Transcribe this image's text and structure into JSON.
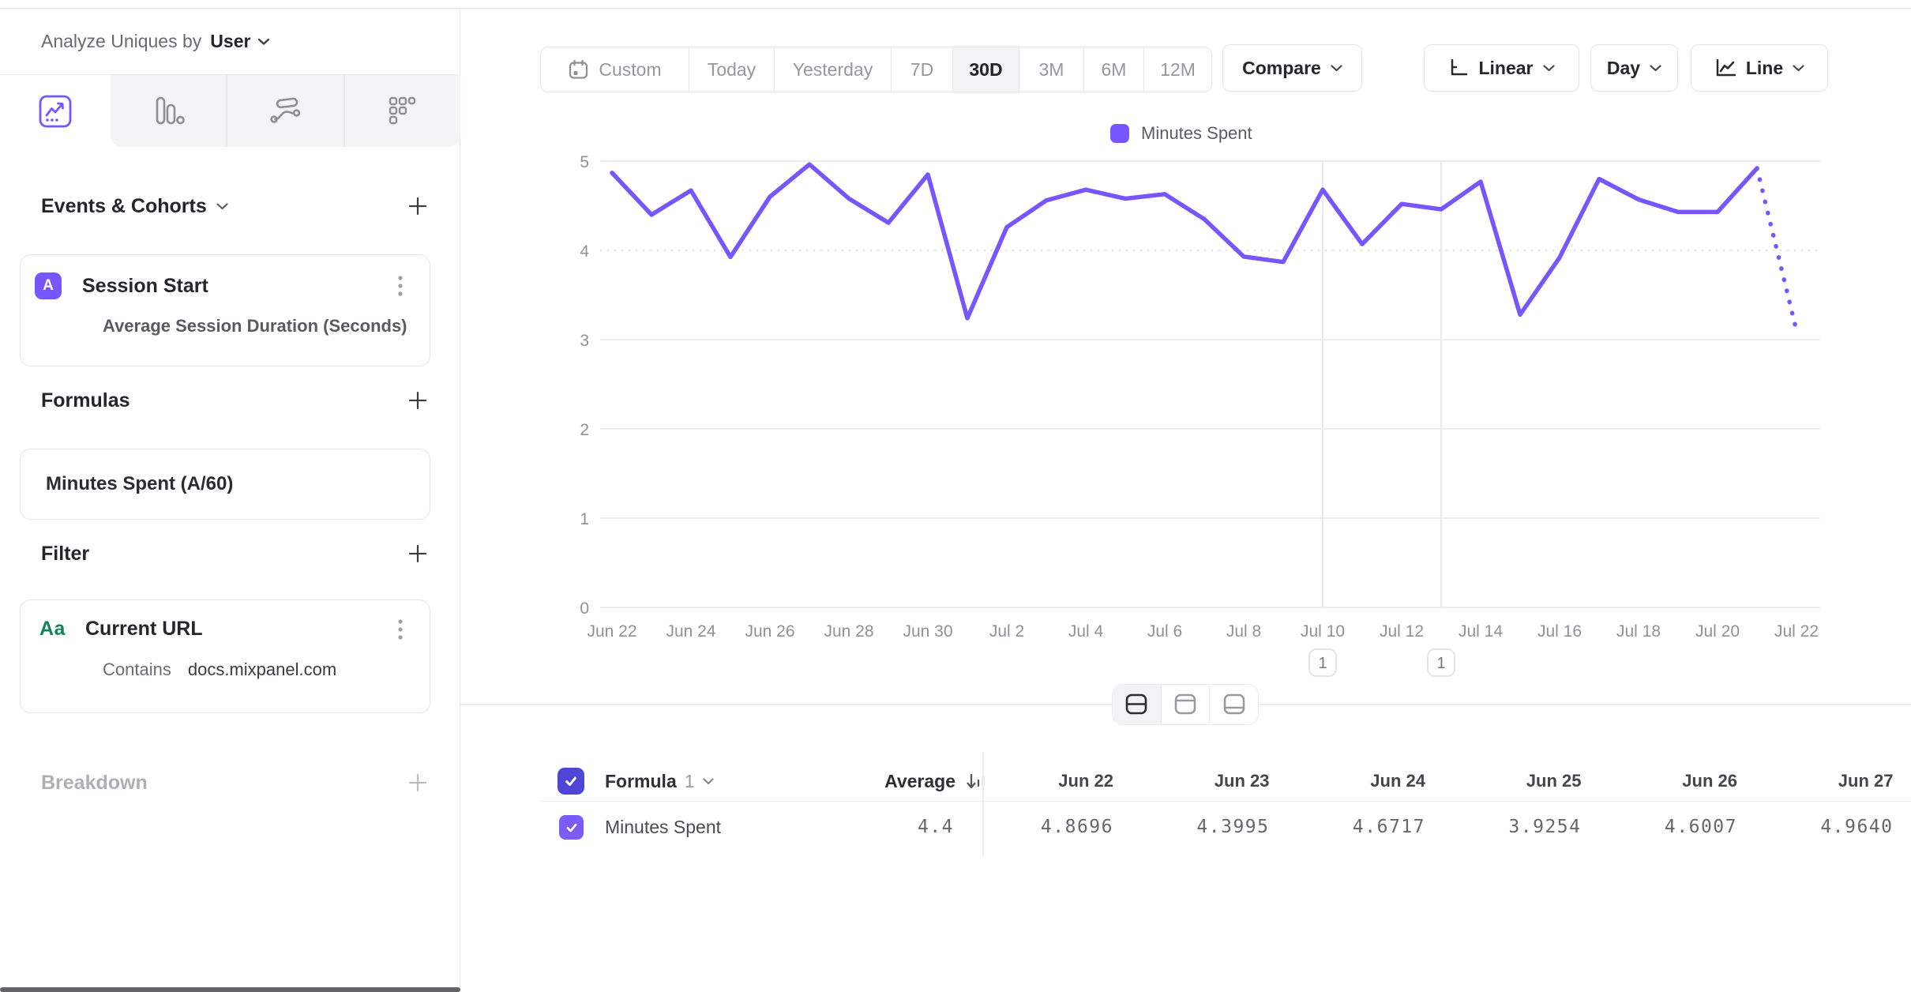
{
  "colors": {
    "accent": "#7856ff",
    "header_checkbox": "#4f46d6",
    "row_checkbox": "#7b5cf6",
    "string_prop_green": "#12845c"
  },
  "sidebar": {
    "analyze_label": "Analyze Uniques by",
    "analyze_value": "User",
    "events_title": "Events & Cohorts",
    "event_card": {
      "badge": "A",
      "title": "Session Start",
      "subtitle": "Average Session Duration (Seconds)"
    },
    "formulas_title": "Formulas",
    "formula_card": {
      "title": "Minutes Spent (A/60)"
    },
    "filter_title": "Filter",
    "filter_card": {
      "icon_label": "Aa",
      "title": "Current URL",
      "operator": "Contains",
      "value": "docs.mixpanel.com"
    },
    "breakdown_title": "Breakdown"
  },
  "toolbar": {
    "date_ranges": [
      "Custom",
      "Today",
      "Yesterday",
      "7D",
      "30D",
      "3M",
      "6M",
      "12M"
    ],
    "active_range": "30D",
    "compare_label": "Compare",
    "scale_label": "Linear",
    "interval_label": "Day",
    "chart_type_label": "Line"
  },
  "chart_data": {
    "type": "line",
    "legend": [
      "Minutes Spent"
    ],
    "legend_position": "top-center",
    "grid": true,
    "ylim": [
      0,
      5
    ],
    "yticks": [
      0,
      1,
      2,
      3,
      4,
      5
    ],
    "x_tick_step": 2,
    "x": [
      "Jun 22",
      "Jun 23",
      "Jun 24",
      "Jun 25",
      "Jun 26",
      "Jun 27",
      "Jun 28",
      "Jun 29",
      "Jun 30",
      "Jul 1",
      "Jul 2",
      "Jul 3",
      "Jul 4",
      "Jul 5",
      "Jul 6",
      "Jul 7",
      "Jul 8",
      "Jul 9",
      "Jul 10",
      "Jul 11",
      "Jul 12",
      "Jul 13",
      "Jul 14",
      "Jul 15",
      "Jul 16",
      "Jul 17",
      "Jul 18",
      "Jul 19",
      "Jul 20",
      "Jul 21",
      "Jul 22"
    ],
    "series": [
      {
        "name": "Minutes Spent",
        "color": "#7856ff",
        "values": [
          4.8696,
          4.3995,
          4.6717,
          3.9254,
          4.6007,
          4.964,
          4.58,
          4.31,
          4.85,
          3.24,
          4.26,
          4.56,
          4.68,
          4.58,
          4.63,
          4.35,
          3.93,
          3.87,
          4.68,
          4.07,
          4.52,
          4.46,
          4.77,
          3.28,
          3.92,
          4.8,
          4.57,
          4.43,
          4.43,
          4.92,
          3.1
        ],
        "solid_until_index": 29,
        "last_segment_style": "dotted"
      }
    ],
    "annotations": [
      {
        "label": "1",
        "x": "Jul 10"
      },
      {
        "label": "1",
        "x": "Jul 13"
      }
    ]
  },
  "chart_controls": {
    "layout_modes": [
      "split-horizontal",
      "panel-top",
      "panel-bottom"
    ],
    "active_mode": "split-horizontal"
  },
  "table": {
    "group_label": "Formula",
    "group_number": "1",
    "average_label": "Average",
    "columns": [
      "Jun 22",
      "Jun 23",
      "Jun 24",
      "Jun 25",
      "Jun 26",
      "Jun 27"
    ],
    "rows": [
      {
        "name": "Minutes Spent",
        "average": "4.4",
        "values": [
          "4.8696",
          "4.3995",
          "4.6717",
          "3.9254",
          "4.6007",
          "4.9640"
        ]
      }
    ]
  }
}
